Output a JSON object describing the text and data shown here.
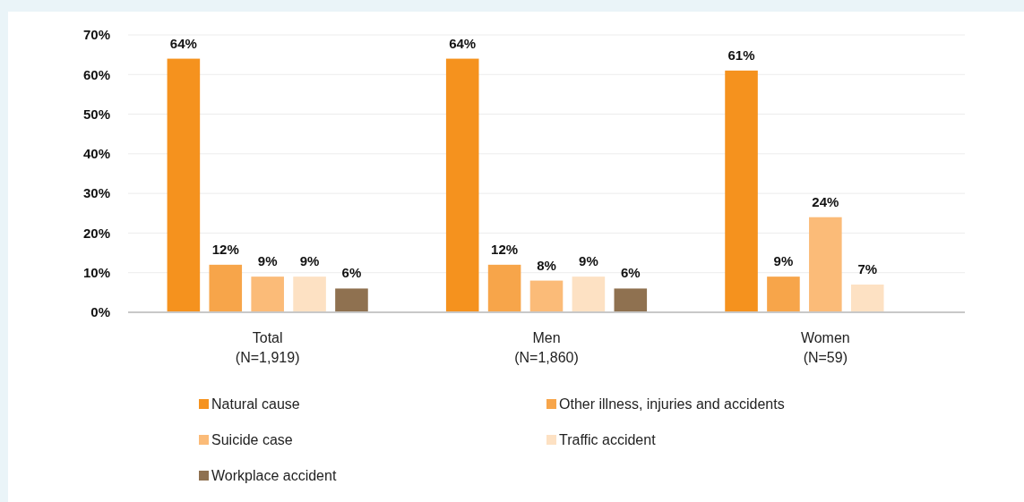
{
  "chart_data": {
    "type": "bar",
    "categories": [
      "Total\n(N=1,919)",
      "Men\n(N=1,860)",
      "Women\n(N=59)"
    ],
    "series": [
      {
        "name": "Natural cause",
        "color": "#f5921e",
        "values": [
          64,
          64,
          61
        ],
        "value_labels": [
          "64%",
          "64%",
          "61%"
        ]
      },
      {
        "name": "Other illness, injuries and accidents",
        "color": "#f7a54a",
        "values": [
          12,
          12,
          9
        ],
        "value_labels": [
          "12%",
          "12%",
          "9%"
        ]
      },
      {
        "name": "Suicide case",
        "color": "#fbbb78",
        "values": [
          9,
          8,
          24
        ],
        "value_labels": [
          "9%",
          "8%",
          "24%"
        ]
      },
      {
        "name": "Traffic accident",
        "color": "#fde1c3",
        "values": [
          9,
          9,
          7
        ],
        "value_labels": [
          "9%",
          "9%",
          "7%"
        ]
      },
      {
        "name": "Workplace accident",
        "color": "#8f7150",
        "values": [
          6,
          6,
          null
        ],
        "value_labels": [
          "6%",
          "6%",
          null
        ]
      }
    ],
    "ylim": [
      0,
      70
    ],
    "yticks": [
      {
        "value": 0,
        "label": "0%"
      },
      {
        "value": 10,
        "label": "10%"
      },
      {
        "value": 20,
        "label": "20%"
      },
      {
        "value": 30,
        "label": "30%"
      },
      {
        "value": 40,
        "label": "40%"
      },
      {
        "value": 50,
        "label": "50%"
      },
      {
        "value": 60,
        "label": "60%"
      },
      {
        "value": 70,
        "label": "70%"
      }
    ],
    "grid": "y",
    "legend": "bottom"
  }
}
